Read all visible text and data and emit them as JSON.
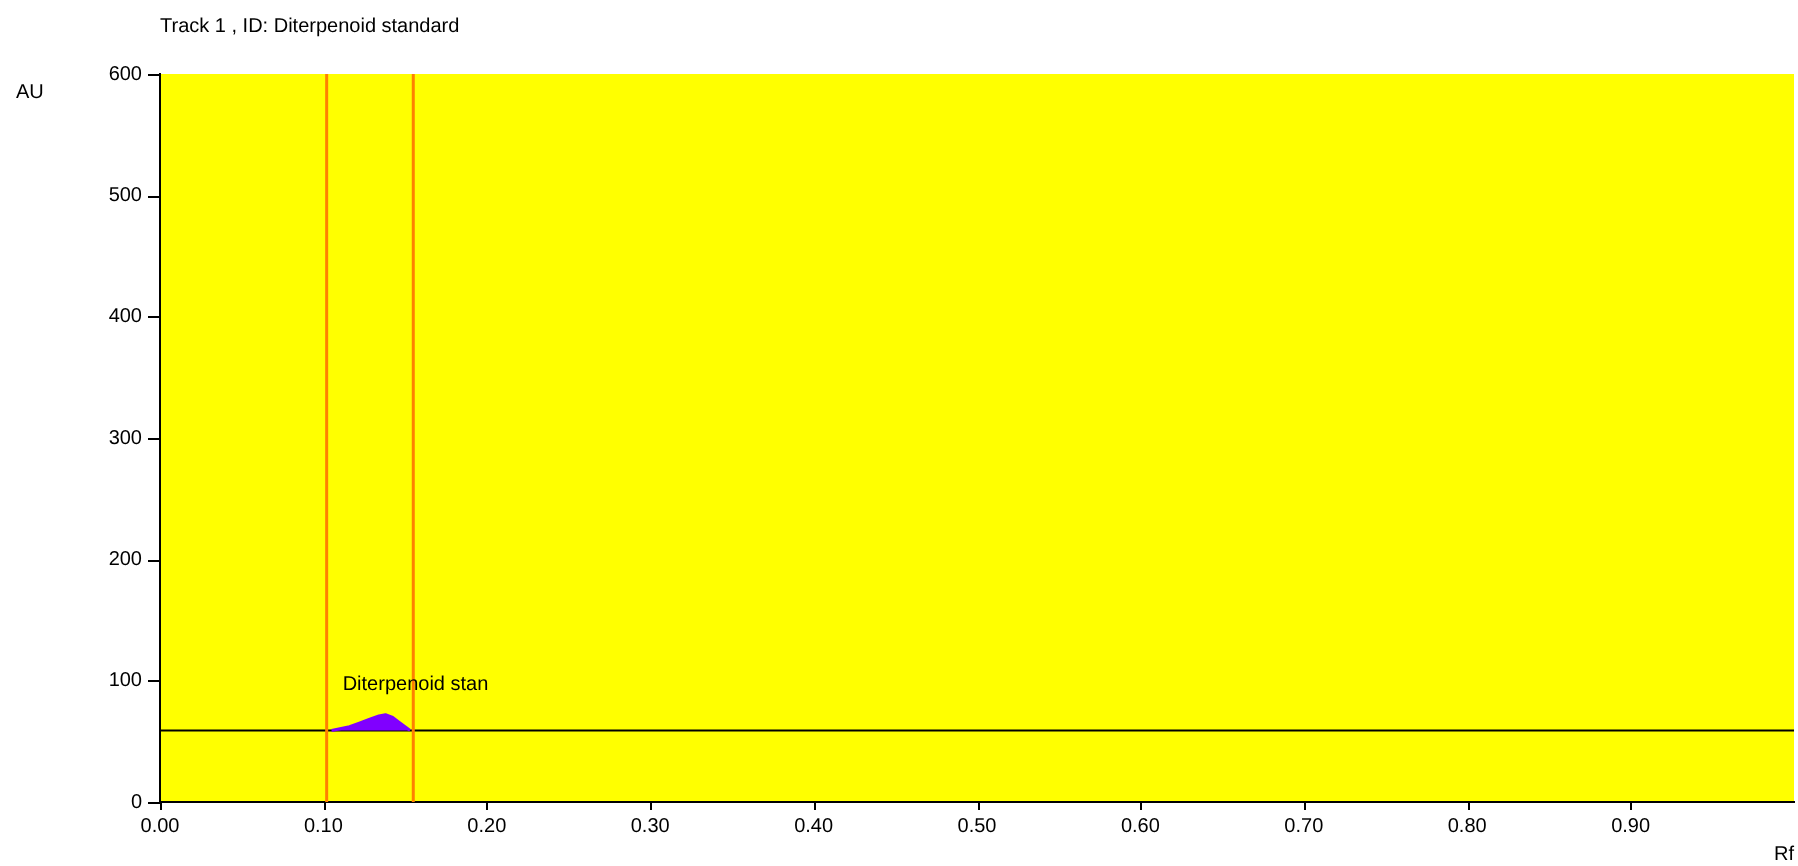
{
  "chart_data": {
    "type": "area",
    "title": "Track  1 , ID: Diterpenoid standard",
    "xlabel": "Rf",
    "ylabel": "AU",
    "series": [
      {
        "name": null,
        "color": "#8000ff",
        "x": [
          0.105,
          0.116,
          0.122,
          0.128,
          0.134,
          0.138,
          0.142,
          0.146,
          0.151,
          0.153
        ],
        "values": [
          59,
          62,
          65,
          68,
          71,
          72,
          70,
          66,
          61,
          59
        ]
      }
    ],
    "xlim": [
      0,
      1
    ],
    "xticks": [
      {
        "value": 0,
        "label": "0.00"
      },
      {
        "value": 0.1,
        "label": "0.10"
      },
      {
        "value": 0.2,
        "label": "0.20"
      },
      {
        "value": 0.3,
        "label": "0.30"
      },
      {
        "value": 0.4,
        "label": "0.40"
      },
      {
        "value": 0.5,
        "label": "0.50"
      },
      {
        "value": 0.6,
        "label": "0.60"
      },
      {
        "value": 0.7,
        "label": "0.70"
      },
      {
        "value": 0.8,
        "label": "0.80"
      },
      {
        "value": 0.9,
        "label": "0.90"
      }
    ],
    "ylim": [
      0,
      600
    ],
    "yticks": [
      0,
      100,
      200,
      300,
      400,
      500,
      600
    ],
    "ref_lines": [
      {
        "axis": "y",
        "value": 59,
        "color": "#000000"
      },
      {
        "axis": "x",
        "value": 0.102,
        "color": "#ff8000"
      },
      {
        "axis": "x",
        "value": 0.155,
        "color": "#ff8000"
      }
    ],
    "annotations": [
      "Diterpenoid stan"
    ],
    "grid": false,
    "legend": false,
    "marker": "none",
    "line_style": "solid"
  }
}
